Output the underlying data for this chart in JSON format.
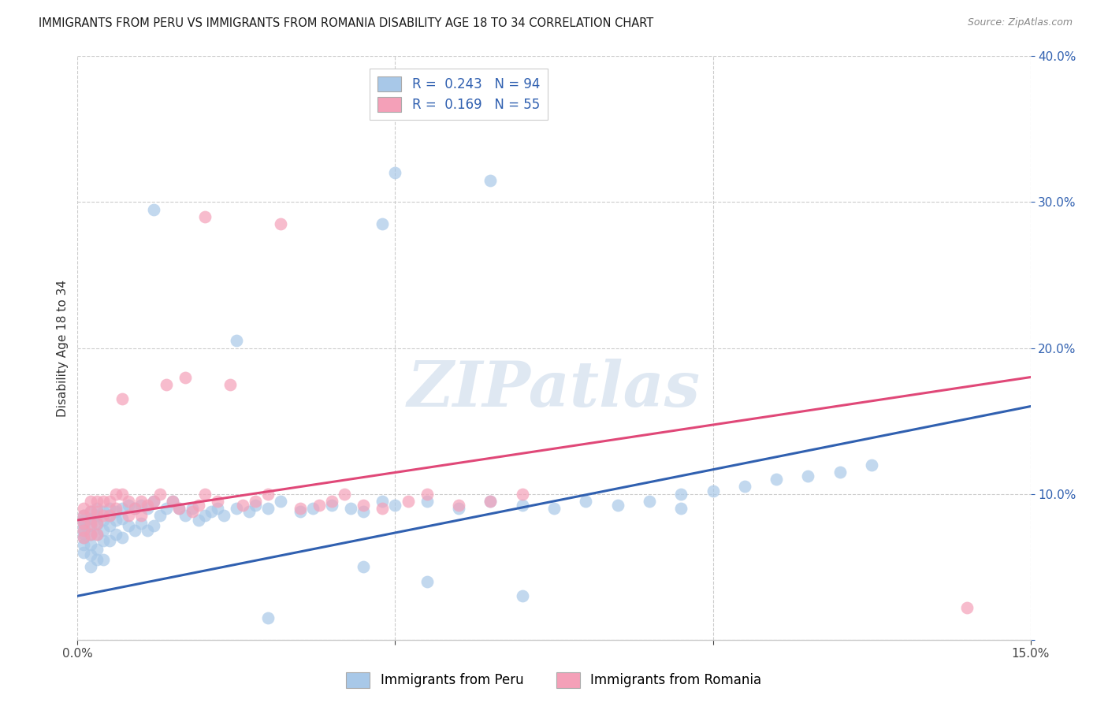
{
  "title": "IMMIGRANTS FROM PERU VS IMMIGRANTS FROM ROMANIA DISABILITY AGE 18 TO 34 CORRELATION CHART",
  "source": "Source: ZipAtlas.com",
  "ylabel": "Disability Age 18 to 34",
  "xlim": [
    0.0,
    0.15
  ],
  "ylim": [
    0.0,
    0.4
  ],
  "peru_color": "#a8c8e8",
  "romania_color": "#f4a0b8",
  "peru_line_color": "#3060b0",
  "romania_line_color": "#e04878",
  "peru_line": [
    0.03,
    0.16
  ],
  "romania_line": [
    0.082,
    0.18
  ],
  "watermark_text": "ZIPatlas",
  "peru_x": [
    0.001,
    0.001,
    0.001,
    0.001,
    0.001,
    0.001,
    0.001,
    0.001,
    0.002,
    0.002,
    0.002,
    0.002,
    0.002,
    0.002,
    0.002,
    0.003,
    0.003,
    0.003,
    0.003,
    0.003,
    0.003,
    0.004,
    0.004,
    0.004,
    0.004,
    0.004,
    0.005,
    0.005,
    0.005,
    0.005,
    0.006,
    0.006,
    0.006,
    0.007,
    0.007,
    0.007,
    0.008,
    0.008,
    0.009,
    0.009,
    0.01,
    0.01,
    0.011,
    0.011,
    0.012,
    0.012,
    0.013,
    0.014,
    0.015,
    0.016,
    0.017,
    0.018,
    0.019,
    0.02,
    0.021,
    0.022,
    0.023,
    0.025,
    0.027,
    0.028,
    0.03,
    0.032,
    0.035,
    0.037,
    0.04,
    0.043,
    0.045,
    0.048,
    0.05,
    0.055,
    0.06,
    0.065,
    0.07,
    0.075,
    0.08,
    0.085,
    0.09,
    0.095,
    0.1,
    0.105,
    0.11,
    0.115,
    0.12,
    0.125,
    0.048,
    0.05,
    0.025,
    0.012,
    0.095,
    0.065,
    0.055,
    0.07,
    0.03,
    0.045
  ],
  "peru_y": [
    0.085,
    0.082,
    0.079,
    0.076,
    0.073,
    0.07,
    0.065,
    0.06,
    0.088,
    0.083,
    0.078,
    0.072,
    0.065,
    0.058,
    0.05,
    0.09,
    0.085,
    0.079,
    0.072,
    0.062,
    0.055,
    0.088,
    0.082,
    0.075,
    0.068,
    0.055,
    0.09,
    0.085,
    0.078,
    0.068,
    0.088,
    0.082,
    0.072,
    0.09,
    0.083,
    0.07,
    0.092,
    0.078,
    0.09,
    0.075,
    0.092,
    0.08,
    0.09,
    0.075,
    0.095,
    0.078,
    0.085,
    0.09,
    0.095,
    0.09,
    0.085,
    0.09,
    0.082,
    0.085,
    0.088,
    0.09,
    0.085,
    0.09,
    0.088,
    0.092,
    0.09,
    0.095,
    0.088,
    0.09,
    0.092,
    0.09,
    0.088,
    0.095,
    0.092,
    0.095,
    0.09,
    0.095,
    0.092,
    0.09,
    0.095,
    0.092,
    0.095,
    0.1,
    0.102,
    0.105,
    0.11,
    0.112,
    0.115,
    0.12,
    0.285,
    0.32,
    0.205,
    0.295,
    0.09,
    0.315,
    0.04,
    0.03,
    0.015,
    0.05
  ],
  "romania_x": [
    0.001,
    0.001,
    0.001,
    0.001,
    0.001,
    0.002,
    0.002,
    0.002,
    0.002,
    0.003,
    0.003,
    0.003,
    0.003,
    0.004,
    0.004,
    0.005,
    0.005,
    0.006,
    0.006,
    0.007,
    0.007,
    0.008,
    0.008,
    0.009,
    0.01,
    0.01,
    0.011,
    0.012,
    0.013,
    0.014,
    0.015,
    0.016,
    0.017,
    0.018,
    0.019,
    0.02,
    0.022,
    0.024,
    0.026,
    0.028,
    0.03,
    0.032,
    0.035,
    0.038,
    0.04,
    0.042,
    0.045,
    0.048,
    0.052,
    0.055,
    0.06,
    0.065,
    0.07,
    0.14,
    0.02
  ],
  "romania_y": [
    0.09,
    0.085,
    0.08,
    0.075,
    0.07,
    0.095,
    0.088,
    0.08,
    0.072,
    0.095,
    0.088,
    0.08,
    0.072,
    0.095,
    0.085,
    0.095,
    0.085,
    0.1,
    0.09,
    0.1,
    0.165,
    0.095,
    0.085,
    0.09,
    0.095,
    0.085,
    0.092,
    0.095,
    0.1,
    0.175,
    0.095,
    0.09,
    0.18,
    0.088,
    0.092,
    0.1,
    0.095,
    0.175,
    0.092,
    0.095,
    0.1,
    0.285,
    0.09,
    0.092,
    0.095,
    0.1,
    0.092,
    0.09,
    0.095,
    0.1,
    0.092,
    0.095,
    0.1,
    0.022,
    0.29
  ]
}
